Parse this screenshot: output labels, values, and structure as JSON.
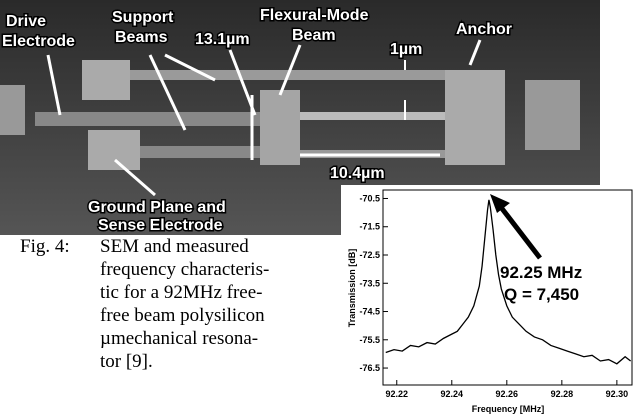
{
  "sem_labels": [
    {
      "lines": [
        "Drive",
        "Electrode"
      ]
    },
    {
      "lines": [
        "Support",
        "Beams"
      ]
    },
    {
      "lines": [
        "13.1µm"
      ]
    },
    {
      "lines": [
        "Flexural-Mode",
        "Beam"
      ]
    },
    {
      "lines": [
        "1µm"
      ]
    },
    {
      "lines": [
        "Anchor"
      ]
    },
    {
      "lines": [
        "10.4µm"
      ]
    },
    {
      "lines": [
        "Ground Plane and",
        "Sense Electrode"
      ]
    }
  ],
  "caption": {
    "label": "Fig. 4:",
    "lines": [
      "SEM and measured",
      "frequency characteris-",
      "tic for a 92MHz free-",
      "free beam polysilicon",
      "µmechanical resona-",
      "tor [9]."
    ]
  },
  "chart_data": {
    "type": "line",
    "x_label": "Frequency [MHz]",
    "y_label": "Transmission [dB]",
    "annotations": [
      "92.25 MHz",
      "Q = 7,450"
    ],
    "x": [
      92.216,
      92.219,
      92.222,
      92.225,
      92.228,
      92.231,
      92.234,
      92.237,
      92.24,
      92.242,
      92.244,
      92.246,
      92.248,
      92.25,
      92.251,
      92.252,
      92.253,
      92.2535,
      92.254,
      92.255,
      92.256,
      92.257,
      92.258,
      92.26,
      92.262,
      92.264,
      92.267,
      92.27,
      92.273,
      92.276,
      92.279,
      92.282,
      92.285,
      92.288,
      92.291,
      92.294,
      92.297,
      92.3,
      92.303,
      92.305
    ],
    "values": [
      -75.95,
      -75.85,
      -75.9,
      -75.7,
      -75.75,
      -75.6,
      -75.65,
      -75.45,
      -75.3,
      -75.2,
      -74.95,
      -74.7,
      -74.3,
      -73.6,
      -72.9,
      -71.9,
      -70.9,
      -70.55,
      -70.8,
      -71.6,
      -72.5,
      -73.2,
      -73.7,
      -74.3,
      -74.7,
      -74.9,
      -75.2,
      -75.4,
      -75.5,
      -75.7,
      -75.8,
      -75.9,
      -76.0,
      -76.1,
      -76.05,
      -76.25,
      -76.2,
      -76.35,
      -76.1,
      -76.25
    ],
    "color": "#000000",
    "xlim": [
      92.215,
      92.3055
    ],
    "xticks": [
      92.22,
      92.24,
      92.26,
      92.28,
      {
        "value": 92.3,
        "label": "92.30"
      }
    ],
    "ylim": [
      -77.1,
      -70.2
    ],
    "yticks": [
      -70.5,
      -71.5,
      -72.5,
      -73.5,
      -74.5,
      -75.5,
      -76.5
    ]
  }
}
